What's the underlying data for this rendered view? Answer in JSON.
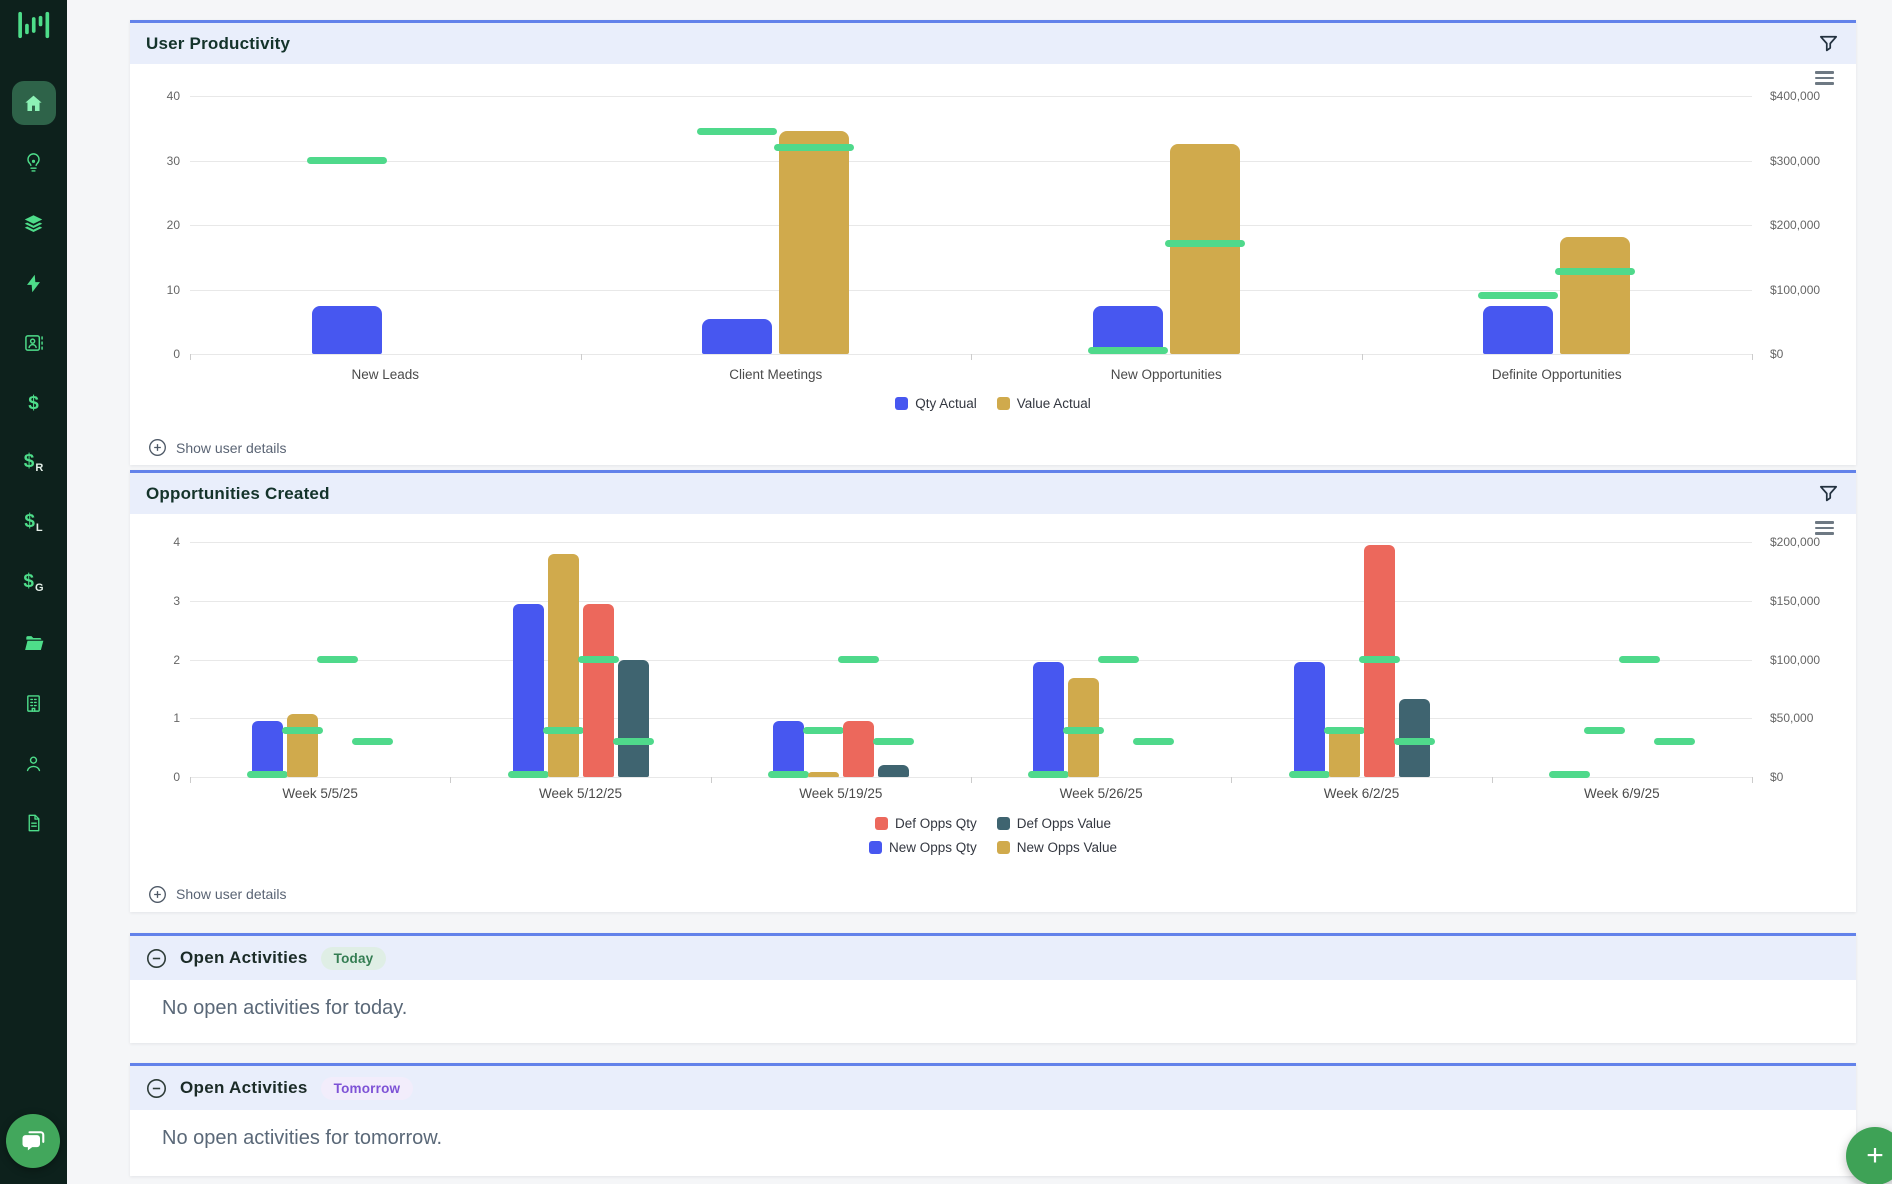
{
  "colors": {
    "sidebar_bg": "#0d211c",
    "sidebar_icon_green": "#4edd8a",
    "panel_header_bg": "#e9eefb",
    "panel_border_blue": "#6282ea",
    "target_green": "#4fd98b",
    "fab_green": "#3ea256",
    "badge_today_text": "#347d52",
    "badge_tomorrow_text": "#7e52d6"
  },
  "sidebar": {
    "logo_icon": "equalizer-logo",
    "chat_icon": "chat-bubbles",
    "items": [
      {
        "name": "home",
        "icon": "home",
        "active": true
      },
      {
        "name": "lightbulb",
        "icon": "lightbulb",
        "active": false
      },
      {
        "name": "layers",
        "icon": "layers",
        "active": false
      },
      {
        "name": "bolt",
        "icon": "bolt",
        "active": false
      },
      {
        "name": "contact-card",
        "icon": "contact-card",
        "active": false
      },
      {
        "name": "dollar",
        "icon": "dollar",
        "active": false
      },
      {
        "name": "dollar-r",
        "icon": "dollar-r",
        "active": false
      },
      {
        "name": "dollar-l",
        "icon": "dollar-l",
        "active": false
      },
      {
        "name": "dollar-g",
        "icon": "dollar-g",
        "active": false
      },
      {
        "name": "folder",
        "icon": "folder",
        "active": false
      },
      {
        "name": "building",
        "icon": "building",
        "active": false
      },
      {
        "name": "user",
        "icon": "user",
        "active": false
      },
      {
        "name": "file",
        "icon": "file",
        "active": false
      }
    ]
  },
  "panels": {
    "user_productivity": {
      "show_details": "Show user details"
    },
    "opportunities_created": {
      "show_details": "Show user details"
    },
    "open_today": {
      "title": "Open Activities",
      "badge": "Today",
      "empty": "No open activities for today."
    },
    "open_tomorrow": {
      "title": "Open Activities",
      "badge": "Tomorrow",
      "empty": "No open activities for tomorrow."
    }
  },
  "fab": {
    "label": "+"
  },
  "chart_data": [
    {
      "type": "bar",
      "title": "User Productivity",
      "categories": [
        "New Leads",
        "Client Meetings",
        "New Opportunities",
        "Definite Opportunities"
      ],
      "left_axis": {
        "ticks": [
          "0",
          "10",
          "20",
          "30",
          "40"
        ],
        "max": 40
      },
      "right_axis": {
        "ticks": [
          "$0",
          "$100,000",
          "$200,000",
          "$300,000",
          "$400,000"
        ],
        "max": 400000
      },
      "target_color": "#4fd98b",
      "series": [
        {
          "name": "Qty Actual",
          "color": "#4757f0",
          "axis": "left",
          "values": [
            7.5,
            5.4,
            7.5,
            7.5
          ],
          "targets": [
            30,
            34.5,
            0.5,
            9
          ]
        },
        {
          "name": "Value Actual",
          "color": "#d0aa4c",
          "axis": "right",
          "values": [
            null,
            345000,
            326000,
            182000
          ],
          "targets": [
            null,
            320000,
            172000,
            128000
          ]
        }
      ],
      "legend": [
        [
          "Qty Actual",
          "Value Actual"
        ]
      ]
    },
    {
      "type": "bar",
      "title": "Opportunities Created",
      "categories": [
        "Week 5/5/25",
        "Week 5/12/25",
        "Week 5/19/25",
        "Week 5/26/25",
        "Week 6/2/25",
        "Week 6/9/25"
      ],
      "left_axis": {
        "ticks": [
          "0",
          "1",
          "2",
          "3",
          "4"
        ],
        "max": 4
      },
      "right_axis": {
        "ticks": [
          "$0",
          "$50,000",
          "$100,000",
          "$150,000",
          "$200,000"
        ],
        "max": 200000
      },
      "target_color": "#4fd98b",
      "series": [
        {
          "name": "New Opps Qty",
          "color": "#4757f0",
          "axis": "left",
          "values": [
            0.95,
            2.95,
            0.95,
            1.95,
            1.95,
            0
          ],
          "targets": [
            0,
            0,
            0,
            0,
            0,
            0
          ]
        },
        {
          "name": "New Opps Value",
          "color": "#d0aa4c",
          "axis": "right",
          "values": [
            54000,
            190000,
            4000,
            84000,
            41000,
            0
          ],
          "targets": [
            40000,
            40000,
            40000,
            40000,
            40000,
            40000
          ]
        },
        {
          "name": "Def Opps Qty",
          "color": "#ec685c",
          "axis": "left",
          "values": [
            0,
            2.95,
            0.95,
            0,
            3.95,
            0
          ],
          "targets": [
            2,
            2,
            2,
            2,
            2,
            2
          ]
        },
        {
          "name": "Def Opps Value",
          "color": "#3f6470",
          "axis": "right",
          "values": [
            0,
            100000,
            10000,
            0,
            66000,
            0
          ],
          "targets": [
            30000,
            30000,
            30000,
            30000,
            30000,
            30000
          ]
        }
      ],
      "legend": [
        [
          "Def Opps Qty",
          "Def Opps Value"
        ],
        [
          "New Opps Qty",
          "New Opps Value"
        ]
      ]
    }
  ]
}
